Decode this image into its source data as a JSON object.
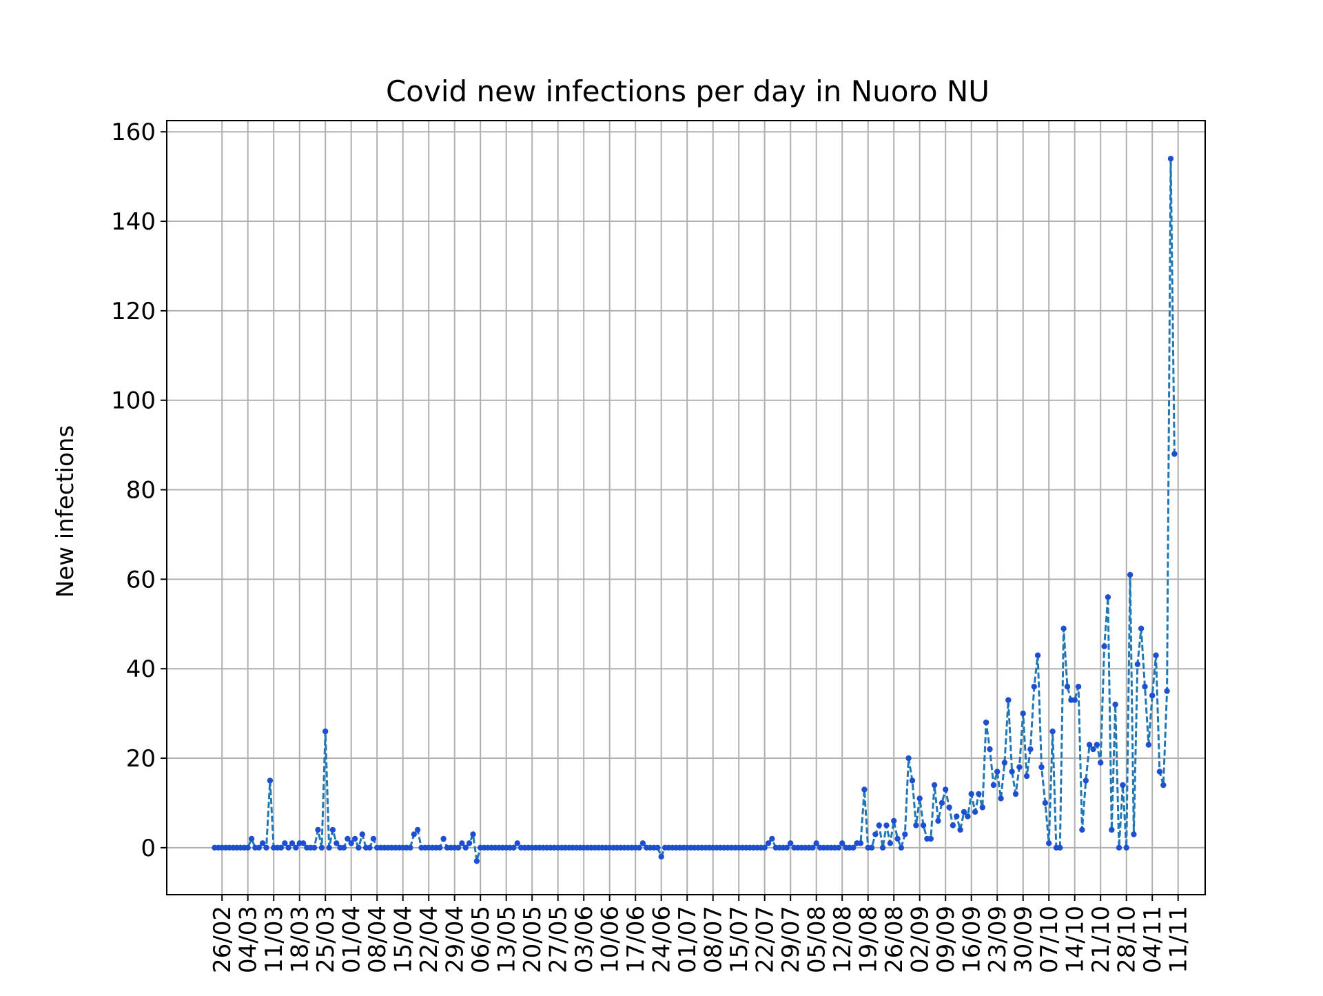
{
  "chart_data": {
    "type": "line",
    "title": "Covid new infections per day in Nuoro NU",
    "ylabel": "New infections",
    "xlabel": "",
    "ylim": [
      -10.5,
      162.5
    ],
    "yticks": [
      0,
      20,
      40,
      60,
      80,
      100,
      120,
      140,
      160
    ],
    "grid": true,
    "line_style": "dashed",
    "marker": "dot",
    "colors": {
      "line": "#1f77b4",
      "marker": "#1f4fd1",
      "grid": "#b0b0b0"
    },
    "x_start": "24/02",
    "x_tick_labels": [
      "26/02",
      "04/03",
      "11/03",
      "18/03",
      "25/03",
      "01/04",
      "08/04",
      "15/04",
      "22/04",
      "29/04",
      "06/05",
      "13/05",
      "20/05",
      "27/05",
      "03/06",
      "10/06",
      "17/06",
      "24/06",
      "01/07",
      "08/07",
      "15/07",
      "22/07",
      "29/07",
      "05/08",
      "12/08",
      "19/08",
      "26/08",
      "02/09",
      "09/09",
      "16/09",
      "23/09",
      "30/09",
      "07/10",
      "14/10",
      "21/10",
      "28/10",
      "04/11",
      "11/11"
    ],
    "series": [
      {
        "values": [
          0,
          0,
          0,
          0,
          0,
          0,
          0,
          0,
          0,
          0,
          2,
          0,
          0,
          1,
          0,
          15,
          0,
          0,
          0,
          1,
          0,
          1,
          0,
          1,
          1,
          0,
          0,
          0,
          4,
          0,
          26,
          0,
          4,
          1,
          0,
          0,
          2,
          1,
          2,
          0,
          3,
          0,
          0,
          2,
          0,
          0,
          0,
          0,
          0,
          0,
          0,
          0,
          0,
          0,
          3,
          4,
          0,
          0,
          0,
          0,
          0,
          0,
          2,
          0,
          0,
          0,
          0,
          1,
          0,
          1,
          3,
          -3,
          0,
          0,
          0,
          0,
          0,
          0,
          0,
          0,
          0,
          0,
          1,
          0,
          0,
          0,
          0,
          0,
          0,
          0,
          0,
          0,
          0,
          0,
          0,
          0,
          0,
          0,
          0,
          0,
          0,
          0,
          0,
          0,
          0,
          0,
          0,
          0,
          0,
          0,
          0,
          0,
          0,
          0,
          0,
          0,
          1,
          0,
          0,
          0,
          0,
          -2,
          0,
          0,
          0,
          0,
          0,
          0,
          0,
          0,
          0,
          0,
          0,
          0,
          0,
          0,
          0,
          0,
          0,
          0,
          0,
          0,
          0,
          0,
          0,
          0,
          0,
          0,
          0,
          0,
          1,
          2,
          0,
          0,
          0,
          0,
          1,
          0,
          0,
          0,
          0,
          0,
          0,
          1,
          0,
          0,
          0,
          0,
          0,
          0,
          1,
          0,
          0,
          0,
          1,
          1,
          13,
          0,
          0,
          3,
          5,
          0,
          5,
          1,
          6,
          2,
          0,
          3,
          20,
          15,
          5,
          11,
          5,
          2,
          2,
          14,
          6,
          10,
          13,
          9,
          5,
          7,
          4,
          8,
          7,
          12,
          8,
          12,
          9,
          28,
          22,
          14,
          17,
          11,
          19,
          33,
          17,
          12,
          18,
          30,
          16,
          22,
          36,
          43,
          18,
          10,
          1,
          26,
          0,
          0,
          49,
          36,
          33,
          33,
          36,
          4,
          15,
          23,
          22,
          23,
          19,
          45,
          56,
          4,
          32,
          0,
          14,
          0,
          61,
          3,
          41,
          49,
          36,
          23,
          34,
          43,
          17,
          14,
          35,
          154,
          88
        ]
      }
    ]
  }
}
